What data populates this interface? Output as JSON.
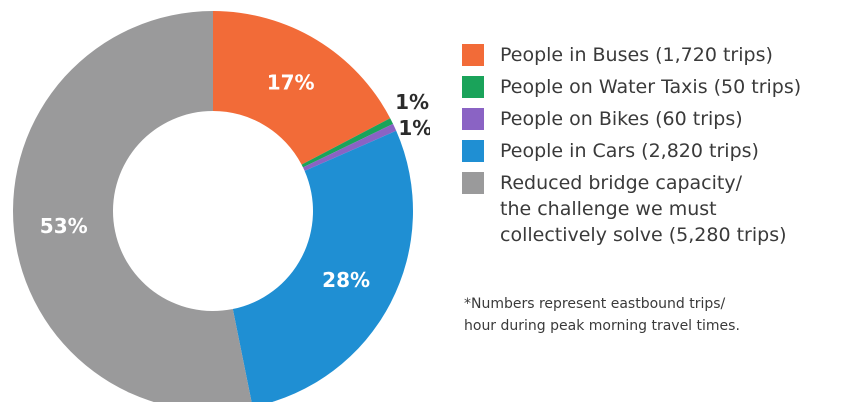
{
  "chart_data": {
    "type": "pie",
    "style": "donut",
    "slices": [
      {
        "label": "People in Buses (1,720 trips)",
        "value": 1720,
        "percent_label": "17%",
        "color": "#f26b38"
      },
      {
        "label": "People on Water Taxis (50 trips)",
        "value": 50,
        "percent_label": "1%",
        "color": "#1aa35a"
      },
      {
        "label": "People on Bikes (60 trips)",
        "value": 60,
        "percent_label": "1%",
        "color": "#8a63c4"
      },
      {
        "label": "People in Cars (2,820 trips)",
        "value": 2820,
        "percent_label": "28%",
        "color": "#1f8fd3"
      },
      {
        "label": "Reduced bridge capacity/\nthe challenge we must\ncollectively solve (5,280 trips)",
        "value": 5280,
        "percent_label": "53%",
        "color": "#9a9a9b"
      }
    ],
    "legend_position": "right"
  },
  "footnote": "*Numbers represent eastbound trips/\nhour during peak morning travel times."
}
